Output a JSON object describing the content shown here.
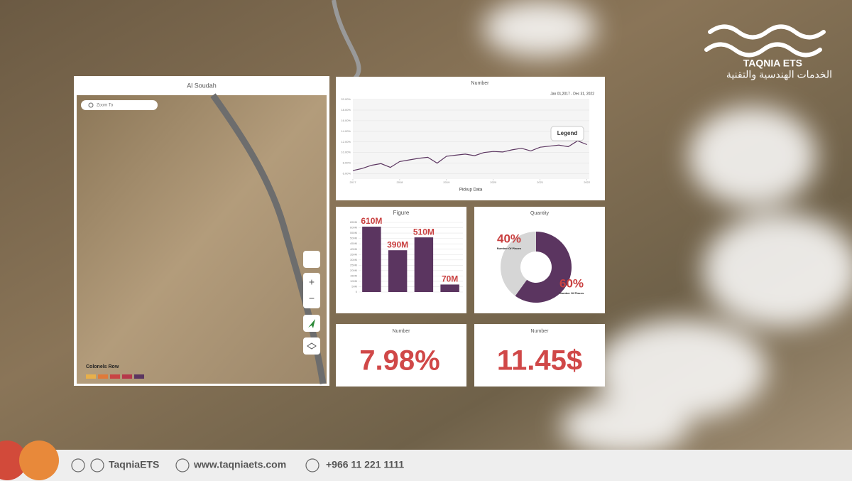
{
  "brand": {
    "name": "TAQNIA ETS",
    "tagline": "الخدمات الهندسية والتقنية"
  },
  "map": {
    "title": "Al Soudah",
    "search": "Zoom To",
    "legend_title": "Colonels Row",
    "legend_colors": [
      "#e8b04a",
      "#e07a3a",
      "#c94444",
      "#b5384a",
      "#5b3560"
    ]
  },
  "chart_data": [
    {
      "type": "line",
      "title": "Number",
      "subtitle": "Jan 01,2017 - Dec 31, 2022",
      "x_label": "Pickup Data",
      "legend_button": "Legend",
      "x": [
        2017.0,
        2017.2,
        2017.4,
        2017.6,
        2017.8,
        2018.0,
        2018.2,
        2018.4,
        2018.6,
        2018.8,
        2019.0,
        2019.2,
        2019.4,
        2019.6,
        2019.8,
        2020.0,
        2020.2,
        2020.4,
        2020.6,
        2020.8,
        2021.0,
        2021.2,
        2021.4,
        2021.6,
        2021.8,
        2022.0
      ],
      "series": [
        {
          "name": "Number",
          "color": "#5b3560",
          "values": [
            6.6,
            7.0,
            7.6,
            7.9,
            7.2,
            8.3,
            8.6,
            8.9,
            9.1,
            8.0,
            9.3,
            9.5,
            9.7,
            9.4,
            10.0,
            10.2,
            10.1,
            10.5,
            10.8,
            10.3,
            11.0,
            11.2,
            11.4,
            11.1,
            12.2,
            11.5
          ]
        }
      ],
      "xlim": [
        2017,
        2022.05
      ],
      "xticks": [
        2017,
        2018,
        2019,
        2020,
        2021,
        2022
      ],
      "ylim": [
        5,
        20
      ],
      "yticks": [
        {
          "value": 6,
          "label": "6.00%"
        },
        {
          "value": 8,
          "label": "8.00%"
        },
        {
          "value": 10,
          "label": "10.00%"
        },
        {
          "value": 12,
          "label": "12.00%"
        },
        {
          "value": 14,
          "label": "14.00%"
        },
        {
          "value": 16,
          "label": "16.00%"
        },
        {
          "value": 18,
          "label": "18.00%"
        },
        {
          "value": 20,
          "label": "20.00%"
        }
      ],
      "grid": true
    },
    {
      "type": "bar",
      "title": "Figure",
      "values": [
        610,
        390,
        510,
        70
      ],
      "value_labels": [
        "610M",
        "390M",
        "510M",
        "70M"
      ],
      "color": "#5b3560",
      "ylim": [
        0,
        650
      ],
      "yticks": [
        0,
        {
          "value": 50,
          "label": "50M"
        },
        {
          "value": 100,
          "label": "100M"
        },
        {
          "value": 150,
          "label": "150M"
        },
        {
          "value": 200,
          "label": "200M"
        },
        {
          "value": 250,
          "label": "250M"
        },
        {
          "value": 300,
          "label": "300M"
        },
        {
          "value": 350,
          "label": "350M"
        },
        {
          "value": 400,
          "label": "400M"
        },
        {
          "value": 450,
          "label": "450M"
        },
        {
          "value": 500,
          "label": "500M"
        },
        {
          "value": 550,
          "label": "550M"
        },
        {
          "value": 600,
          "label": "600M"
        },
        {
          "value": 650,
          "label": "650M"
        }
      ],
      "grid": true
    },
    {
      "type": "pie",
      "title": "Quantity",
      "values": [
        40,
        60
      ],
      "value_labels": [
        "40%",
        "60%"
      ],
      "categories": [
        "Number Of Places",
        "Number Of Places"
      ],
      "colors": [
        "#d6d6d6",
        "#5b3560"
      ]
    }
  ],
  "kpis": [
    {
      "title": "Number",
      "value": "7.98%"
    },
    {
      "title": "Number",
      "value": "11.45$"
    }
  ],
  "footer": {
    "social": "TaqniaETS",
    "website": "www.taqniaets.com",
    "phone": "+966 11 221 1111"
  }
}
